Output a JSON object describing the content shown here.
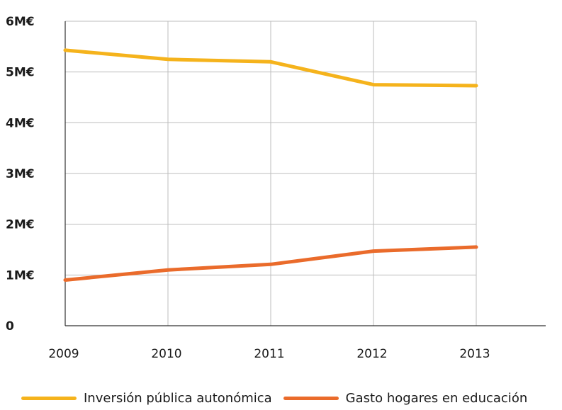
{
  "chart_data": {
    "type": "line",
    "title": "",
    "xlabel": "",
    "ylabel": "",
    "x": [
      "2009",
      "2010",
      "2011",
      "2012",
      "2013"
    ],
    "ylim": [
      0,
      6
    ],
    "yticks": [
      0,
      1,
      2,
      3,
      4,
      5,
      6
    ],
    "ytick_labels": [
      "0",
      "1M€",
      "2M€",
      "3M€",
      "4M€",
      "5M€",
      "6M€"
    ],
    "grid": true,
    "legend_position": "bottom",
    "series": [
      {
        "name": "Inversión pública autonómica",
        "color": "#f5b31c",
        "values": [
          5.43,
          5.25,
          5.2,
          4.75,
          4.73
        ]
      },
      {
        "name": "Gasto hogares en educación",
        "color": "#ea6b2b",
        "values": [
          0.9,
          1.1,
          1.21,
          1.47,
          1.55
        ]
      }
    ]
  }
}
